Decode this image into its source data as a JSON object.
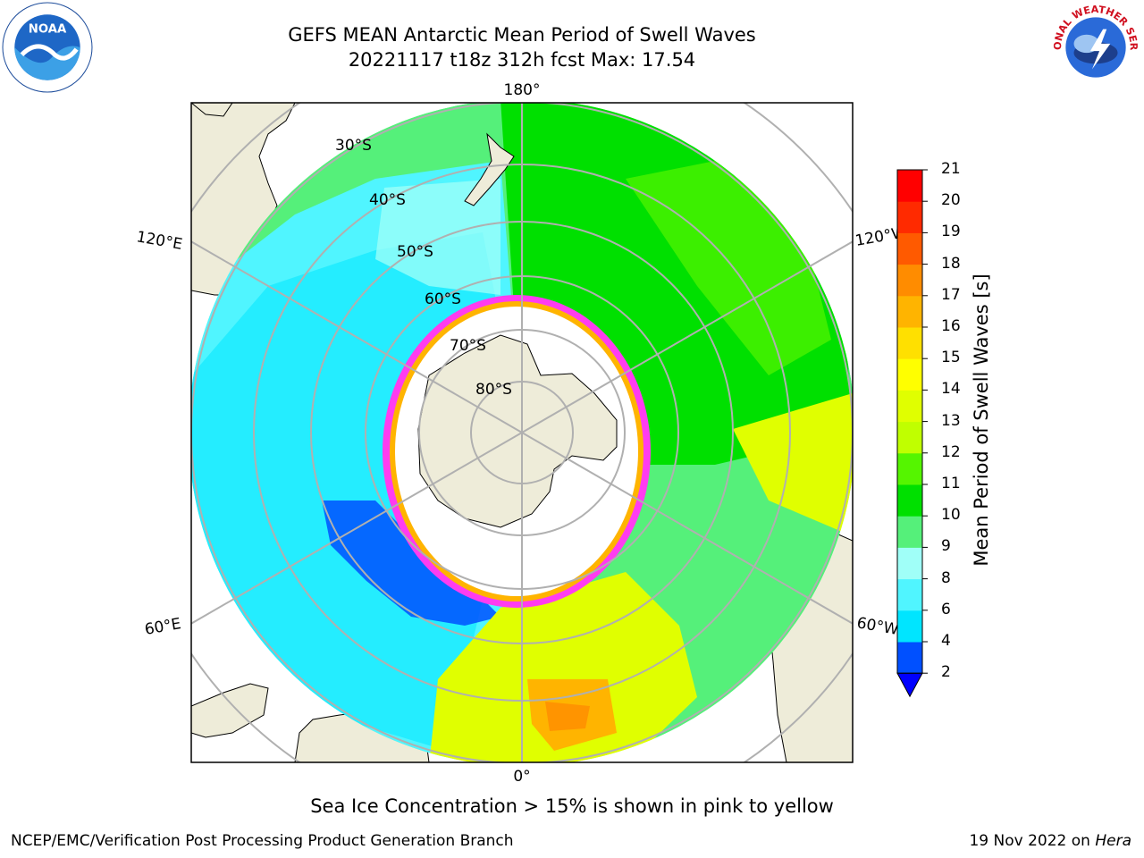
{
  "header": {
    "title_line1": "GEFS MEAN Antarctic Mean Period of Swell Waves",
    "title_line2": "20221117 t18z 312h fcst   Max: 17.54"
  },
  "map": {
    "projection": "south-polar-stereographic",
    "lon_labels": {
      "top": "180°",
      "left_upper": "120°E",
      "right_upper": "120°W",
      "left_lower": "60°E",
      "right_lower": "60°W",
      "bottom": "0°"
    },
    "lat_labels": [
      "30°S",
      "40°S",
      "50°S",
      "60°S",
      "70°S",
      "80°S"
    ],
    "sea_ice_note": "Sea Ice Concentration > 15% is shown in pink to yellow"
  },
  "colorbar": {
    "label": "Mean Period of Swell Waves [s]",
    "ticks": [
      "2",
      "4",
      "6",
      "8",
      "9",
      "10",
      "11",
      "12",
      "13",
      "14",
      "15",
      "16",
      "17",
      "18",
      "19",
      "20",
      "21"
    ],
    "colors": [
      "#0050ff",
      "#00e5ff",
      "#50f5ff",
      "#a0fff8",
      "#55f07a",
      "#00e000",
      "#55f500",
      "#c0ff00",
      "#e0ff00",
      "#ffff00",
      "#ffe000",
      "#ffb400",
      "#ff8c00",
      "#ff5a00",
      "#ff2a00",
      "#ff0000"
    ],
    "extend_min_color": "#0000ff"
  },
  "footer": {
    "left": "NCEP/EMC/Verification Post Processing Product Generation Branch",
    "right_date": "19 Nov 2022 on ",
    "right_host": "Hera"
  },
  "logos": {
    "noaa_text": "NOAA",
    "nws_text": "NATIONAL WEATHER SERVICE"
  }
}
